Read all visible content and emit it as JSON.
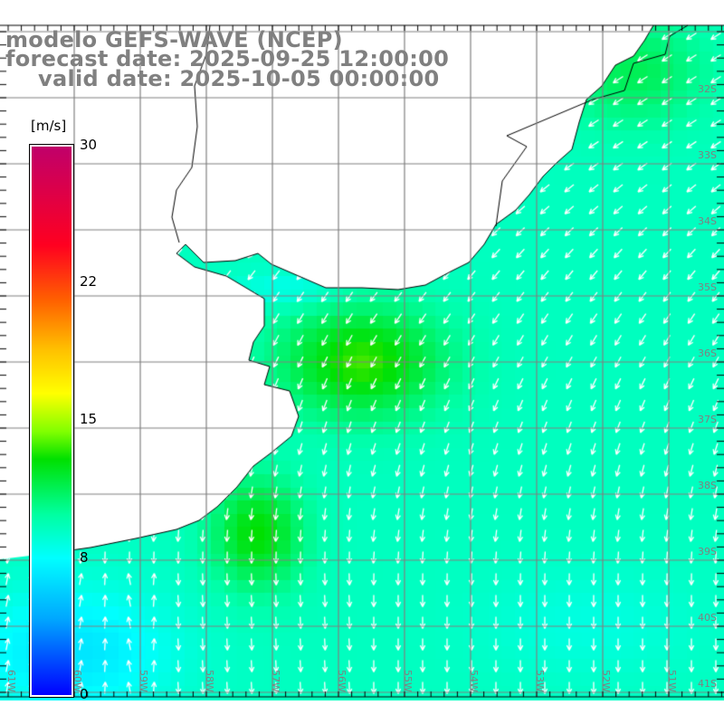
{
  "title": {
    "model": "modelo GEFS-WAVE (NCEP)",
    "forecast": "forecast date: 2025-09-25 12:00:00",
    "valid": "valid date: 2025-10-05 00:00:00"
  },
  "colorbar": {
    "unit": "[m/s]",
    "labels": [
      "30",
      "22",
      "15",
      "8",
      "0"
    ],
    "min": 0,
    "max": 30
  },
  "axes": {
    "lat_labels": [
      "32S",
      "33S",
      "34S",
      "35S",
      "36S",
      "37S",
      "38S",
      "39S",
      "40S",
      "41S"
    ],
    "lon_labels": [
      "61W",
      "60W",
      "59W",
      "58W",
      "57W",
      "56W",
      "55W",
      "54W",
      "53W",
      "52W",
      "51W"
    ]
  },
  "colors": {
    "grid": "#808080",
    "land": "#ffffff",
    "coast": "#000000",
    "arrow": "#ffffff"
  }
}
